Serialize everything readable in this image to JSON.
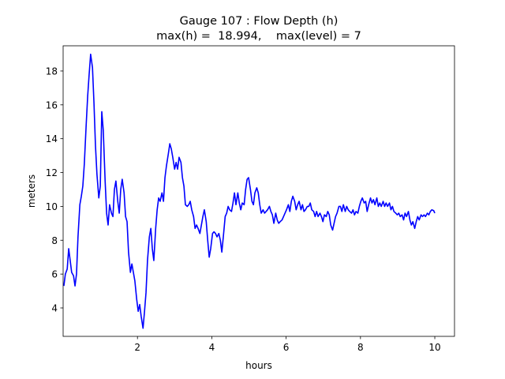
{
  "chart_data": {
    "type": "line",
    "title": "Gauge 107 : Flow Depth (h)",
    "subtitle": "max(h) =  18.994,    max(level) = 7",
    "xlabel": "hours",
    "ylabel": "meters",
    "xlim": [
      0,
      10.53
    ],
    "ylim": [
      2.32,
      19.49
    ],
    "xticks": [
      2,
      4,
      6,
      8,
      10
    ],
    "yticks": [
      4,
      6,
      8,
      10,
      12,
      14,
      16,
      18
    ],
    "grid": false,
    "series": [
      {
        "color": "#0000ff",
        "x": [
          0.02,
          0.06,
          0.11,
          0.15,
          0.19,
          0.23,
          0.28,
          0.32,
          0.36,
          0.4,
          0.45,
          0.49,
          0.53,
          0.57,
          0.62,
          0.66,
          0.7,
          0.74,
          0.79,
          0.83,
          0.87,
          0.91,
          0.96,
          1.0,
          1.04,
          1.08,
          1.13,
          1.17,
          1.21,
          1.25,
          1.3,
          1.34,
          1.38,
          1.42,
          1.47,
          1.51,
          1.55,
          1.59,
          1.64,
          1.68,
          1.72,
          1.76,
          1.81,
          1.85,
          1.89,
          1.93,
          1.98,
          2.02,
          2.06,
          2.1,
          2.15,
          2.19,
          2.23,
          2.27,
          2.32,
          2.36,
          2.4,
          2.44,
          2.49,
          2.53,
          2.57,
          2.61,
          2.66,
          2.7,
          2.74,
          2.78,
          2.83,
          2.87,
          2.91,
          2.95,
          3.0,
          3.04,
          3.08,
          3.12,
          3.17,
          3.21,
          3.25,
          3.29,
          3.34,
          3.38,
          3.42,
          3.46,
          3.51,
          3.55,
          3.59,
          3.63,
          3.68,
          3.72,
          3.76,
          3.8,
          3.85,
          3.89,
          3.93,
          3.97,
          4.02,
          4.06,
          4.1,
          4.14,
          4.19,
          4.23,
          4.27,
          4.31,
          4.36,
          4.4,
          4.44,
          4.48,
          4.53,
          4.57,
          4.61,
          4.65,
          4.7,
          4.74,
          4.78,
          4.82,
          4.87,
          4.91,
          4.95,
          4.99,
          5.04,
          5.08,
          5.12,
          5.16,
          5.21,
          5.25,
          5.29,
          5.33,
          5.38,
          5.42,
          5.46,
          5.5,
          5.55,
          5.59,
          5.63,
          5.67,
          5.72,
          5.76,
          5.8,
          5.84,
          5.89,
          5.93,
          5.97,
          6.01,
          6.06,
          6.1,
          6.14,
          6.18,
          6.23,
          6.27,
          6.31,
          6.35,
          6.4,
          6.44,
          6.48,
          6.52,
          6.57,
          6.61,
          6.65,
          6.69,
          6.74,
          6.78,
          6.82,
          6.86,
          6.91,
          6.95,
          6.99,
          7.03,
          7.08,
          7.12,
          7.16,
          7.2,
          7.25,
          7.29,
          7.33,
          7.37,
          7.42,
          7.46,
          7.5,
          7.54,
          7.59,
          7.63,
          7.67,
          7.71,
          7.76,
          7.8,
          7.84,
          7.88,
          7.93,
          7.97,
          8.01,
          8.05,
          8.1,
          8.14,
          8.18,
          8.22,
          8.27,
          8.31,
          8.35,
          8.39,
          8.44,
          8.48,
          8.52,
          8.56,
          8.61,
          8.65,
          8.69,
          8.73,
          8.78,
          8.82,
          8.86,
          8.9,
          8.95,
          8.99,
          9.03,
          9.07,
          9.12,
          9.16,
          9.2,
          9.24,
          9.29,
          9.33,
          9.37,
          9.41,
          9.46,
          9.5,
          9.54,
          9.58,
          9.63,
          9.67,
          9.71,
          9.75,
          9.8,
          9.84,
          9.88,
          9.92,
          9.97,
          10.0
        ],
        "values": [
          5.3,
          6.0,
          6.3,
          7.5,
          6.8,
          6.1,
          5.9,
          5.3,
          6.0,
          8.2,
          10.1,
          10.6,
          11.2,
          12.5,
          14.8,
          16.5,
          17.8,
          18.99,
          18.2,
          16.1,
          13.6,
          11.9,
          10.5,
          11.2,
          15.6,
          14.5,
          11.5,
          9.6,
          8.9,
          10.1,
          9.6,
          9.4,
          11.0,
          11.5,
          10.3,
          9.6,
          11.0,
          11.6,
          10.8,
          9.4,
          9.1,
          7.3,
          6.1,
          6.6,
          6.1,
          5.6,
          4.5,
          3.8,
          4.2,
          3.5,
          2.8,
          3.8,
          4.9,
          6.8,
          8.2,
          8.7,
          7.5,
          6.8,
          8.7,
          9.8,
          10.5,
          10.3,
          10.8,
          10.3,
          11.7,
          12.4,
          13.1,
          13.7,
          13.4,
          12.9,
          12.2,
          12.6,
          12.2,
          12.9,
          12.6,
          11.7,
          11.2,
          10.1,
          10.0,
          10.1,
          10.3,
          9.8,
          9.4,
          8.7,
          8.9,
          8.7,
          8.4,
          8.9,
          9.4,
          9.8,
          9.1,
          8.0,
          7.0,
          7.5,
          8.4,
          8.5,
          8.4,
          8.2,
          8.4,
          8.0,
          7.3,
          8.2,
          9.4,
          9.6,
          10.0,
          9.8,
          9.7,
          10.2,
          10.8,
          10.1,
          10.8,
          10.2,
          9.8,
          10.2,
          10.1,
          11.0,
          11.6,
          11.7,
          11.0,
          10.3,
          10.1,
          10.8,
          11.1,
          10.8,
          10.1,
          9.6,
          9.8,
          9.6,
          9.7,
          9.8,
          10.0,
          9.7,
          9.5,
          9.0,
          9.6,
          9.2,
          9.0,
          9.1,
          9.2,
          9.4,
          9.6,
          9.8,
          10.1,
          9.7,
          10.3,
          10.6,
          10.3,
          9.8,
          10.1,
          10.3,
          9.8,
          10.1,
          9.7,
          9.8,
          10.0,
          10.0,
          10.2,
          9.8,
          9.7,
          9.4,
          9.7,
          9.4,
          9.6,
          9.4,
          9.1,
          9.5,
          9.4,
          9.7,
          9.5,
          8.9,
          8.6,
          9.0,
          9.4,
          9.6,
          10.0,
          10.0,
          9.7,
          10.1,
          9.7,
          10.0,
          9.8,
          9.7,
          9.6,
          9.8,
          9.5,
          9.7,
          9.6,
          10.0,
          10.3,
          10.5,
          10.2,
          10.3,
          9.7,
          10.1,
          10.5,
          10.2,
          10.4,
          10.1,
          10.5,
          10.0,
          10.2,
          10.0,
          10.3,
          10.0,
          10.2,
          10.0,
          10.2,
          9.8,
          10.0,
          9.7,
          9.6,
          9.5,
          9.6,
          9.4,
          9.5,
          9.2,
          9.6,
          9.4,
          9.7,
          9.2,
          8.9,
          9.1,
          8.7,
          9.1,
          9.4,
          9.2,
          9.5,
          9.4,
          9.5,
          9.4,
          9.6,
          9.5,
          9.7,
          9.8,
          9.75,
          9.6
        ]
      }
    ]
  }
}
